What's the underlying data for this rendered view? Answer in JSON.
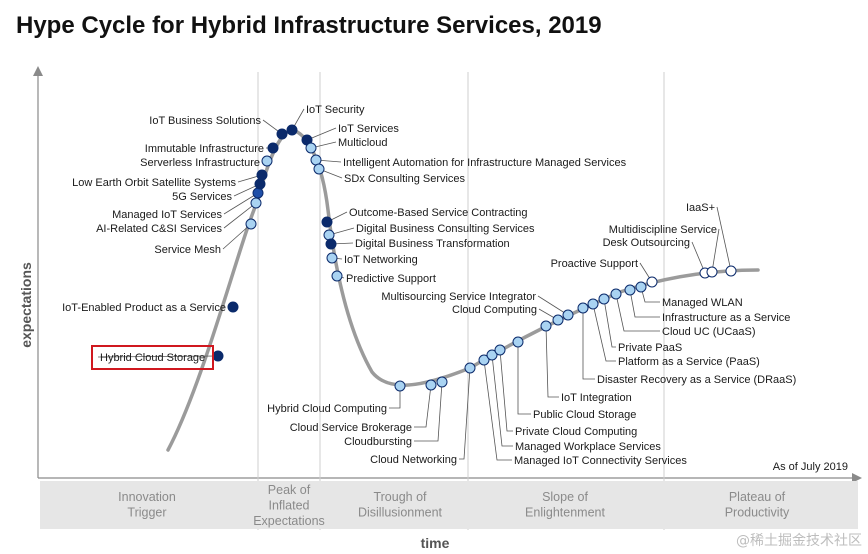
{
  "chart_data": {
    "type": "scatter",
    "title": "Hype Cycle for Hybrid Infrastructure Services, 2019",
    "xlabel": "time",
    "ylabel": "expectations",
    "as_of": "As of July 2019",
    "phases": [
      "Innovation\nTrigger",
      "Peak of\nInflated\nExpectations",
      "Trough of\nDisillusionment",
      "Slope of\nEnlightenment",
      "Plateau of\nProductivity"
    ],
    "legend_colors": {
      "dark": "#0b2a6b",
      "medium": "#1f4fa8",
      "light": "#a9d3f2",
      "curve": "#9b9b9b"
    },
    "items": [
      {
        "name": "Hybrid Cloud Storage",
        "color": "dark",
        "highlight": true
      },
      {
        "name": "IoT-Enabled Product as a Service",
        "color": "dark"
      },
      {
        "name": "Service Mesh",
        "color": "light"
      },
      {
        "name": "AI-Related C&SI Services",
        "color": "light"
      },
      {
        "name": "Managed IoT Services",
        "color": "medium"
      },
      {
        "name": "5G Services",
        "color": "dark"
      },
      {
        "name": "Low Earth Orbit Satellite Systems",
        "color": "dark"
      },
      {
        "name": "Serverless Infrastructure",
        "color": "light"
      },
      {
        "name": "Immutable Infrastructure",
        "color": "dark"
      },
      {
        "name": "IoT Business Solutions",
        "color": "dark"
      },
      {
        "name": "IoT Security",
        "color": "dark"
      },
      {
        "name": "IoT Services",
        "color": "dark"
      },
      {
        "name": "Multicloud",
        "color": "light"
      },
      {
        "name": "Intelligent Automation for Infrastructure Managed Services",
        "color": "light"
      },
      {
        "name": "SDx Consulting Services",
        "color": "light"
      },
      {
        "name": "Outcome-Based Service Contracting",
        "color": "dark"
      },
      {
        "name": "Digital Business Consulting Services",
        "color": "light"
      },
      {
        "name": "Digital Business Transformation",
        "color": "dark"
      },
      {
        "name": "IoT Networking",
        "color": "light"
      },
      {
        "name": "Predictive Support",
        "color": "light"
      },
      {
        "name": "Hybrid Cloud Computing",
        "color": "light"
      },
      {
        "name": "Cloud Service Brokerage",
        "color": "light"
      },
      {
        "name": "Cloudbursting",
        "color": "light"
      },
      {
        "name": "Cloud Networking",
        "color": "light"
      },
      {
        "name": "Managed IoT Connectivity Services",
        "color": "light"
      },
      {
        "name": "Managed Workplace Services",
        "color": "light"
      },
      {
        "name": "Private Cloud Computing",
        "color": "light"
      },
      {
        "name": "Public Cloud Storage",
        "color": "light"
      },
      {
        "name": "IoT Integration",
        "color": "light"
      },
      {
        "name": "Cloud Computing",
        "color": "light"
      },
      {
        "name": "Multisourcing Service Integrator",
        "color": "light"
      },
      {
        "name": "Disaster Recovery as a Service (DRaaS)",
        "color": "light"
      },
      {
        "name": "Platform as a Service (PaaS)",
        "color": "light"
      },
      {
        "name": "Private PaaS",
        "color": "light"
      },
      {
        "name": "Cloud UC (UCaaS)",
        "color": "light"
      },
      {
        "name": "Infrastructure as a Service",
        "color": "light"
      },
      {
        "name": "Managed WLAN",
        "color": "light"
      },
      {
        "name": "Proactive Support",
        "color": "white"
      },
      {
        "name": "Desk Outsourcing",
        "color": "white"
      },
      {
        "name": "Multidiscipline Service",
        "color": "white"
      },
      {
        "name": "IaaS+",
        "color": "white"
      }
    ]
  },
  "watermark": "@稀土掘金技术社区"
}
